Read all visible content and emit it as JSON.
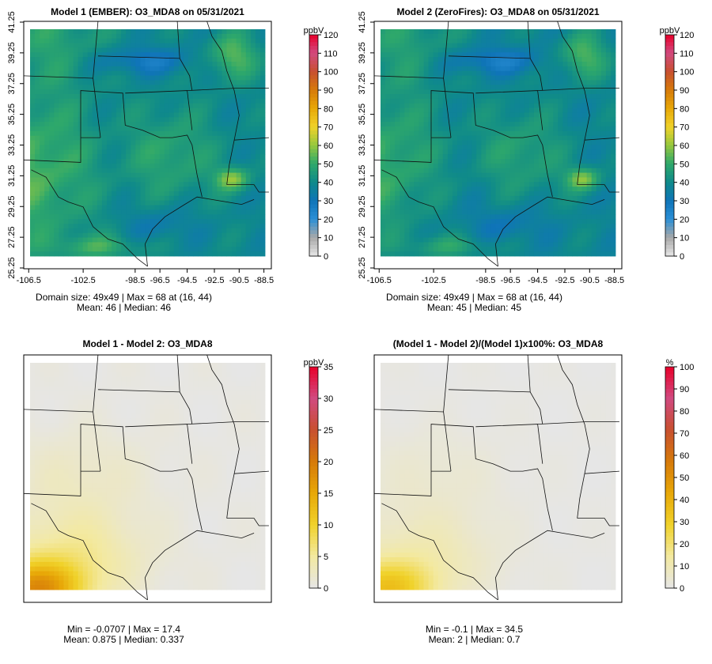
{
  "chart_data": [
    {
      "type": "heatmap",
      "title": "Model 1 (EMBER): O3_MDA8 on 05/31/2021",
      "colorbar_unit": "ppbV",
      "colorbar_range": [
        0,
        120
      ],
      "colorbar_ticks": [
        "0",
        "10",
        "20",
        "30",
        "40",
        "50",
        "60",
        "70",
        "80",
        "90",
        "100",
        "110",
        "120"
      ],
      "x_ticks": [
        "-106.5",
        "-102.5",
        "-98.5",
        "-96.5",
        "-94.5",
        "-92.5",
        "-90.5",
        "-88.5"
      ],
      "y_ticks": [
        "25.25",
        "27.25",
        "29.25",
        "31.25",
        "33.25",
        "35.25",
        "37.25",
        "39.25",
        "41.25"
      ],
      "grid": [
        49,
        49
      ],
      "max": {
        "value": 68,
        "i": 16,
        "j": 44
      },
      "mean": 46,
      "median": 46,
      "stats_line1": "Domain size: 49x49 | Max = 68 at (16, 44)",
      "stats_line2": "Mean: 46 |  Median: 46"
    },
    {
      "type": "heatmap",
      "title": "Model 2 (ZeroFires): O3_MDA8 on 05/31/2021",
      "colorbar_unit": "ppbV",
      "colorbar_range": [
        0,
        120
      ],
      "colorbar_ticks": [
        "0",
        "10",
        "20",
        "30",
        "40",
        "50",
        "60",
        "70",
        "80",
        "90",
        "100",
        "110",
        "120"
      ],
      "x_ticks": [
        "-106.5",
        "-102.5",
        "-98.5",
        "-96.5",
        "-94.5",
        "-92.5",
        "-90.5",
        "-88.5"
      ],
      "y_ticks": [
        "25.25",
        "27.25",
        "29.25",
        "31.25",
        "33.25",
        "35.25",
        "37.25",
        "39.25",
        "41.25"
      ],
      "grid": [
        49,
        49
      ],
      "max": {
        "value": 68,
        "i": 16,
        "j": 44
      },
      "mean": 45,
      "median": 45,
      "stats_line1": "Domain size: 49x49 | Max = 68 at (16, 44)",
      "stats_line2": "Mean: 45 |  Median: 45"
    },
    {
      "type": "heatmap",
      "title": "Model 1 - Model 2: O3_MDA8",
      "colorbar_unit": "ppbV",
      "colorbar_range": [
        0,
        35
      ],
      "colorbar_ticks": [
        "0",
        "5",
        "10",
        "15",
        "20",
        "25",
        "30",
        "35"
      ],
      "min": -0.0707,
      "max": 17.4,
      "mean": 0.875,
      "median": 0.337,
      "stats_line1": "Min = -0.0707 | Max = 17.4",
      "stats_line2": "Mean: 0.875 |  Median: 0.337"
    },
    {
      "type": "heatmap",
      "title": "(Model 1 - Model 2)/(Model 1)x100%: O3_MDA8",
      "colorbar_unit": "%",
      "colorbar_range": [
        0,
        100
      ],
      "colorbar_ticks": [
        "0",
        "10",
        "20",
        "30",
        "40",
        "50",
        "60",
        "70",
        "80",
        "90",
        "100"
      ],
      "min": -0.1,
      "max": 34.5,
      "mean": 2,
      "median": 0.7,
      "stats_line1": "Min = -0.1 | Max = 34.5",
      "stats_line2": "Mean: 2 |  Median: 0.7"
    }
  ],
  "colors": {
    "ramp": [
      "#e6e6e6",
      "#a8a8a8",
      "#2b8fd6",
      "#0f74b8",
      "#0f8a8a",
      "#2ea86b",
      "#96c83e",
      "#f0d22a",
      "#e8a808",
      "#d67a0a",
      "#c85030",
      "#d14a80",
      "#e8002a"
    ],
    "diff_ramp": [
      "#e6e6e6",
      "#f3e9a0",
      "#f0d22a",
      "#e8a808",
      "#d67a0a",
      "#c85030",
      "#d14a80",
      "#e8002a"
    ]
  }
}
